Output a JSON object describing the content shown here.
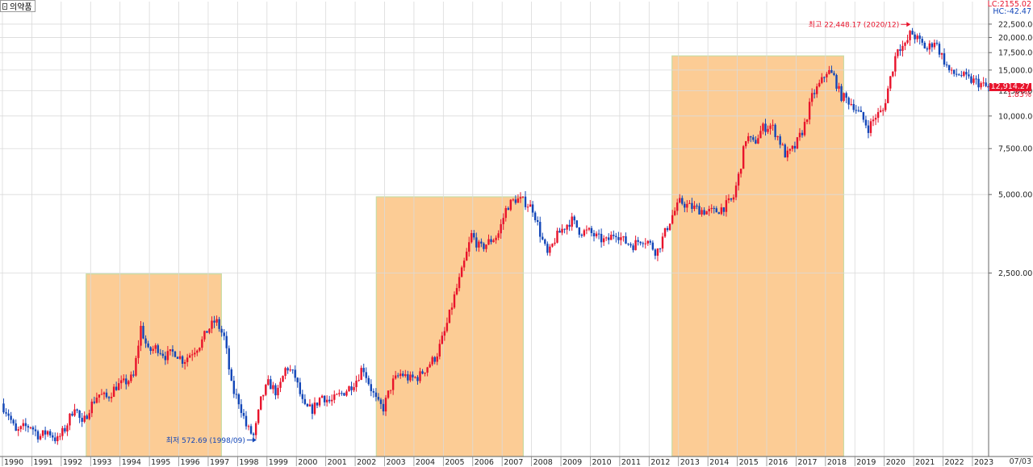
{
  "header": {
    "title": "의약품"
  },
  "overlay": {
    "lc_label": "LC:2155.02",
    "hc_label": "HC:-42.47",
    "last_price": "12,914.27",
    "last_pct": "1.83%",
    "x_end_label": "07/03"
  },
  "colors": {
    "up": "#e8132b",
    "down": "#1246b8",
    "band": "#fccc95",
    "band_edge": "#c8dca4",
    "grid": "#dadada",
    "max_label": "#e8132b",
    "min_label": "#1246b8"
  },
  "chart_data": {
    "type": "candlestick",
    "title": "의약품",
    "scale": "log",
    "x_range": [
      1990.0,
      2023.55
    ],
    "y_range": [
      495,
      25200
    ],
    "y_ticks": [
      2500,
      5000,
      7500,
      10000,
      12500,
      15000,
      17500,
      20000,
      22500
    ],
    "y_tick_labels": [
      "2,500.00",
      "5,000.00",
      "7,500.00",
      "10,000.00",
      "12,500.00",
      "15,000.00",
      "17,500.00",
      "20,000.00",
      "22,500.00"
    ],
    "x_ticks": [
      "1990",
      "1991",
      "1992",
      "1993",
      "1994",
      "1995",
      "1996",
      "1997",
      "1998",
      "1999",
      "2000",
      "2001",
      "2002",
      "2003",
      "2004",
      "2005",
      "2006",
      "2007",
      "2008",
      "2009",
      "2010",
      "2011",
      "2012",
      "2013",
      "2014",
      "2015",
      "2016",
      "2017",
      "2018",
      "2019",
      "2020",
      "2021",
      "2022",
      "2023"
    ],
    "bands": [
      {
        "x_from": 1992.85,
        "x_to": 1997.45,
        "y_top": 2480
      },
      {
        "x_from": 2002.72,
        "x_to": 2007.72,
        "y_top": 4900
      },
      {
        "x_from": 2012.78,
        "x_to": 2018.62,
        "y_top": 17000
      }
    ],
    "annotations": [
      {
        "text": "최고 22,448.17 (2020/12)",
        "x": 2020.95,
        "y": 22448.17,
        "side": "left",
        "color": "max"
      },
      {
        "text": "최저 572.69 (1998/09)",
        "x": 1998.7,
        "y": 572.69,
        "side": "left",
        "color": "min"
      }
    ],
    "path": [
      [
        1990.0,
        790
      ],
      [
        1990.25,
        720
      ],
      [
        1990.5,
        610
      ],
      [
        1990.75,
        640
      ],
      [
        1991.0,
        650
      ],
      [
        1991.3,
        590
      ],
      [
        1991.6,
        620
      ],
      [
        1991.9,
        570
      ],
      [
        1992.2,
        640
      ],
      [
        1992.5,
        780
      ],
      [
        1992.75,
        650
      ],
      [
        1993.0,
        760
      ],
      [
        1993.3,
        860
      ],
      [
        1993.6,
        830
      ],
      [
        1993.9,
        920
      ],
      [
        1994.2,
        950
      ],
      [
        1994.5,
        1000
      ],
      [
        1994.75,
        1550
      ],
      [
        1995.0,
        1250
      ],
      [
        1995.3,
        1300
      ],
      [
        1995.6,
        1200
      ],
      [
        1995.9,
        1250
      ],
      [
        1996.2,
        1150
      ],
      [
        1996.5,
        1250
      ],
      [
        1996.8,
        1350
      ],
      [
        1997.0,
        1500
      ],
      [
        1997.3,
        1650
      ],
      [
        1997.6,
        1400
      ],
      [
        1997.85,
        900
      ],
      [
        1998.1,
        800
      ],
      [
        1998.35,
        640
      ],
      [
        1998.6,
        590
      ],
      [
        1998.85,
        830
      ],
      [
        1999.1,
        950
      ],
      [
        1999.4,
        860
      ],
      [
        1999.7,
        1100
      ],
      [
        2000.0,
        1000
      ],
      [
        2000.3,
        760
      ],
      [
        2000.6,
        750
      ],
      [
        2000.9,
        850
      ],
      [
        2001.2,
        800
      ],
      [
        2001.5,
        850
      ],
      [
        2001.8,
        900
      ],
      [
        2002.1,
        980
      ],
      [
        2002.3,
        1100
      ],
      [
        2002.55,
        920
      ],
      [
        2002.8,
        790
      ],
      [
        2003.0,
        760
      ],
      [
        2003.3,
        950
      ],
      [
        2003.6,
        1030
      ],
      [
        2003.9,
        980
      ],
      [
        2004.2,
        1000
      ],
      [
        2004.5,
        1100
      ],
      [
        2004.8,
        1200
      ],
      [
        2005.1,
        1500
      ],
      [
        2005.4,
        2000
      ],
      [
        2005.7,
        2600
      ],
      [
        2006.0,
        3500
      ],
      [
        2006.3,
        3100
      ],
      [
        2006.6,
        3300
      ],
      [
        2006.9,
        3500
      ],
      [
        2007.2,
        4500
      ],
      [
        2007.5,
        4800
      ],
      [
        2007.8,
        4700
      ],
      [
        2008.1,
        4400
      ],
      [
        2008.35,
        3500
      ],
      [
        2008.6,
        2900
      ],
      [
        2008.85,
        3400
      ],
      [
        2009.1,
        3700
      ],
      [
        2009.4,
        4000
      ],
      [
        2009.7,
        3600
      ],
      [
        2010.0,
        3600
      ],
      [
        2010.3,
        3400
      ],
      [
        2010.6,
        3300
      ],
      [
        2010.9,
        3600
      ],
      [
        2011.2,
        3300
      ],
      [
        2011.5,
        3200
      ],
      [
        2011.8,
        3400
      ],
      [
        2012.0,
        3300
      ],
      [
        2012.3,
        3000
      ],
      [
        2012.55,
        3500
      ],
      [
        2012.8,
        4100
      ],
      [
        2013.1,
        4700
      ],
      [
        2013.4,
        4500
      ],
      [
        2013.7,
        4400
      ],
      [
        2014.0,
        4300
      ],
      [
        2014.3,
        4300
      ],
      [
        2014.6,
        4500
      ],
      [
        2014.9,
        4800
      ],
      [
        2015.1,
        6000
      ],
      [
        2015.35,
        8400
      ],
      [
        2015.6,
        7800
      ],
      [
        2015.9,
        9000
      ],
      [
        2016.2,
        9200
      ],
      [
        2016.45,
        8200
      ],
      [
        2016.7,
        7000
      ],
      [
        2017.0,
        7600
      ],
      [
        2017.3,
        9000
      ],
      [
        2017.6,
        12000
      ],
      [
        2017.9,
        13500
      ],
      [
        2018.1,
        15000
      ],
      [
        2018.35,
        14000
      ],
      [
        2018.55,
        12000
      ],
      [
        2018.8,
        11500
      ],
      [
        2019.0,
        11000
      ],
      [
        2019.25,
        10000
      ],
      [
        2019.5,
        9000
      ],
      [
        2019.75,
        10000
      ],
      [
        2020.0,
        10500
      ],
      [
        2020.25,
        14000
      ],
      [
        2020.5,
        18500
      ],
      [
        2020.75,
        18500
      ],
      [
        2020.95,
        21000
      ],
      [
        2021.2,
        19500
      ],
      [
        2021.5,
        18000
      ],
      [
        2021.75,
        19500
      ],
      [
        2022.0,
        17000
      ],
      [
        2022.3,
        14500
      ],
      [
        2022.6,
        14500
      ],
      [
        2022.9,
        13800
      ],
      [
        2023.2,
        13500
      ],
      [
        2023.5,
        12914
      ]
    ]
  }
}
